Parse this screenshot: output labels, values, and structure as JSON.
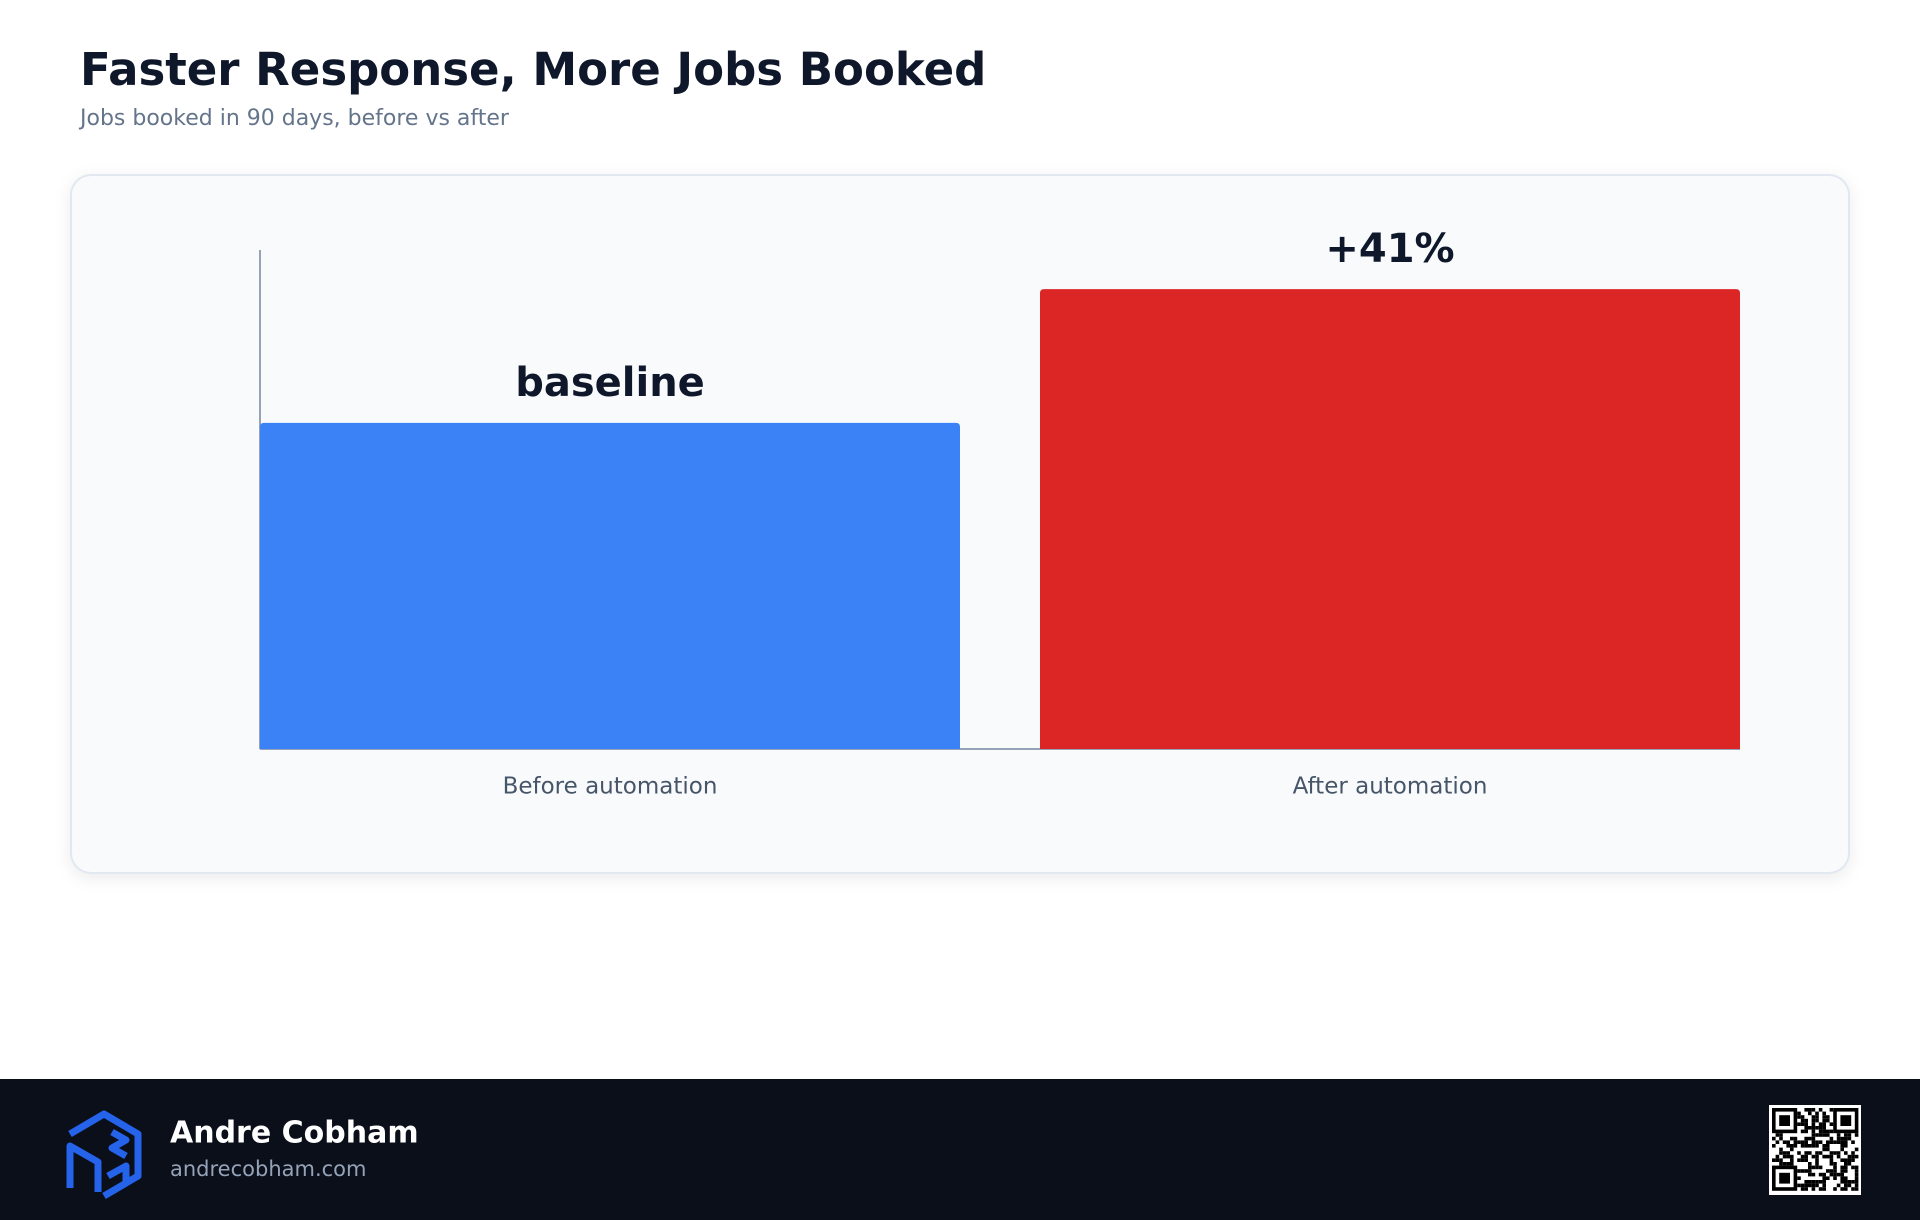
{
  "chart_data": {
    "type": "bar",
    "title": "Faster Response, More Jobs Booked",
    "subtitle": "Jobs booked in 90 days, before vs after",
    "categories": [
      "Before automation",
      "After automation"
    ],
    "values": [
      100,
      141
    ],
    "value_labels": [
      "baseline",
      "+41%"
    ],
    "colors": [
      "#3b82f6",
      "#dc2626"
    ],
    "ylim": [
      0,
      153
    ]
  },
  "footer": {
    "name": "Andre Cobham",
    "url": "andrecobham.com"
  }
}
